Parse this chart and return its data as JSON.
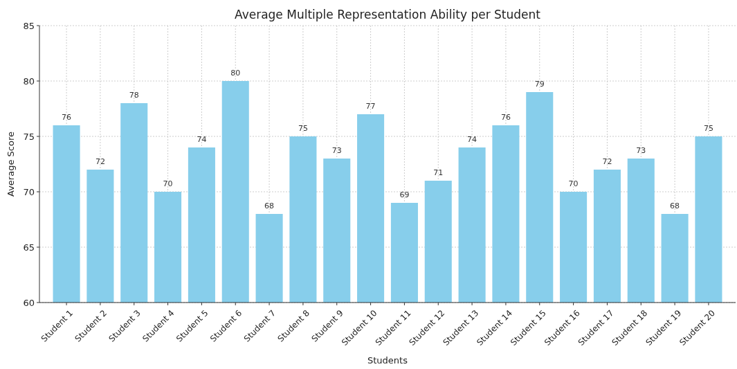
{
  "chart_data": {
    "type": "bar",
    "title": "Average Multiple Representation Ability per Student",
    "xlabel": "Students",
    "ylabel": "Average Score",
    "categories": [
      "Student 1",
      "Student 2",
      "Student 3",
      "Student 4",
      "Student 5",
      "Student 6",
      "Student 7",
      "Student 8",
      "Student 9",
      "Student 10",
      "Student 11",
      "Student 12",
      "Student 13",
      "Student 14",
      "Student 15",
      "Student 16",
      "Student 17",
      "Student 18",
      "Student 19",
      "Student 20"
    ],
    "values": [
      76,
      72,
      78,
      70,
      74,
      80,
      68,
      75,
      73,
      77,
      69,
      71,
      74,
      76,
      79,
      70,
      72,
      73,
      68,
      75
    ],
    "color": "#87ceeb",
    "ylim": [
      60,
      85
    ],
    "yticks": [
      60,
      65,
      70,
      75,
      80,
      85
    ],
    "grid": true,
    "data_labels": true
  }
}
